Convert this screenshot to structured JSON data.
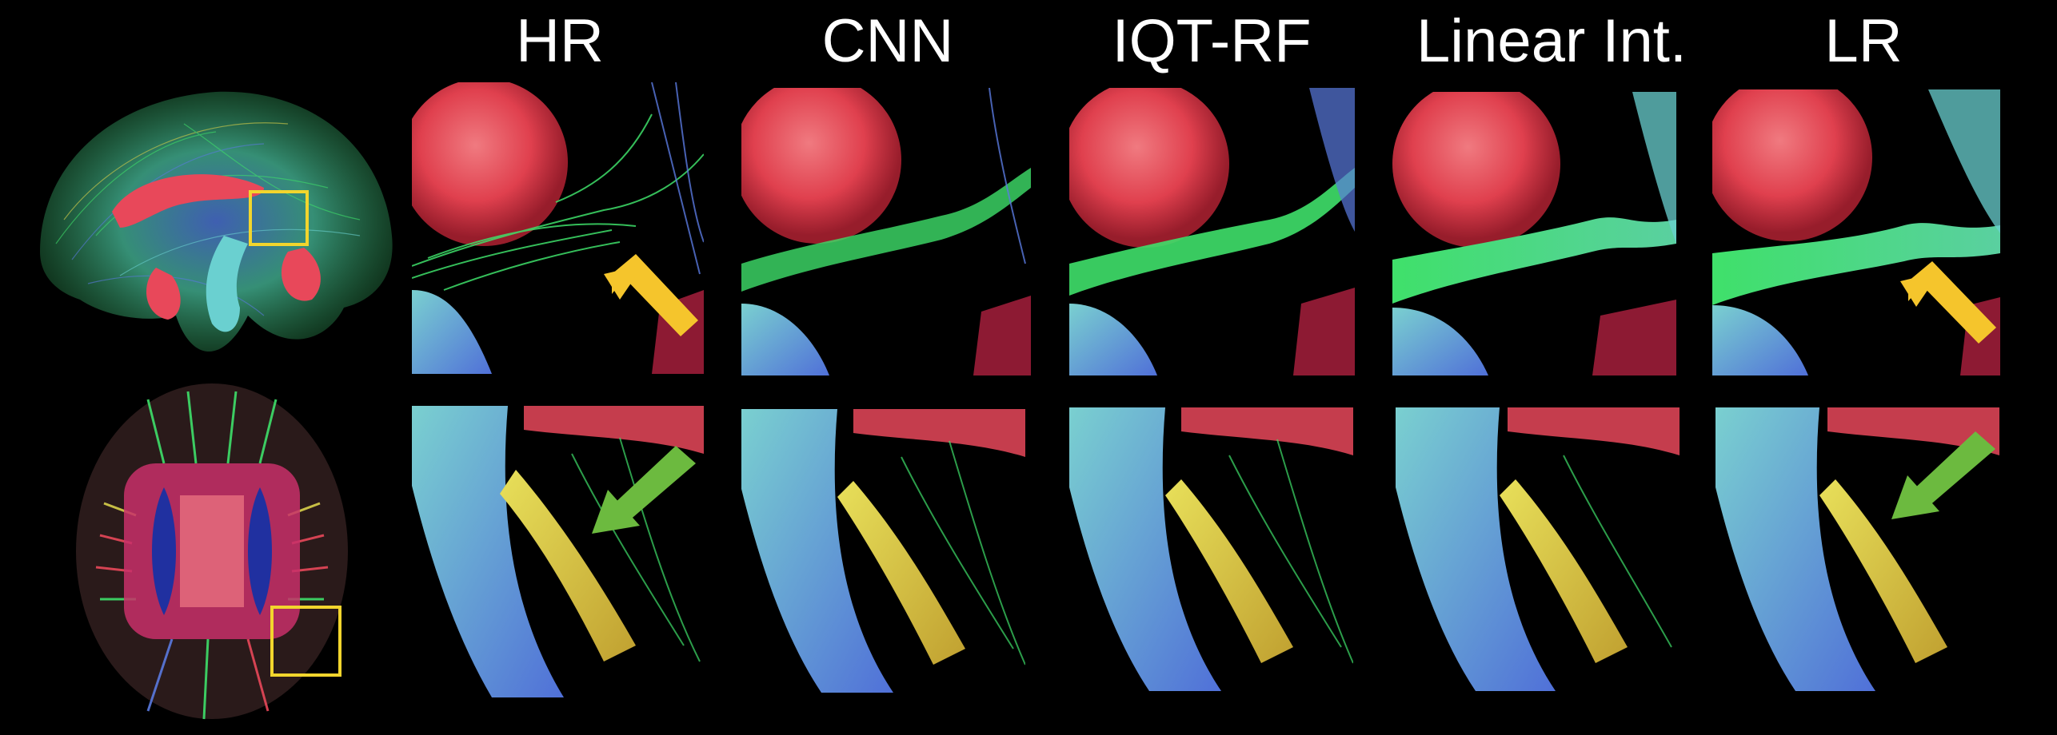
{
  "columns": [
    {
      "label": "HR"
    },
    {
      "label": "CNN"
    },
    {
      "label": "IQT-RF"
    },
    {
      "label": "Linear Int."
    },
    {
      "label": "LR"
    }
  ],
  "rows": [
    {
      "view": "sagittal",
      "roi": "roi-box-top"
    },
    {
      "view": "axial",
      "roi": "roi-box-bottom"
    }
  ],
  "colors": {
    "background": "#000000",
    "roi_box": "#f2d52d",
    "arrow_yellow": "#f5c52c",
    "arrow_green": "#6cba3f",
    "fiber_red": "#e8485a",
    "fiber_green": "#3fe06a",
    "fiber_blue": "#5a7ae0",
    "fiber_yellow": "#d8d04a"
  },
  "arrows": [
    {
      "row": 0,
      "column": "HR",
      "color": "yellow",
      "direction": "up-left"
    },
    {
      "row": 0,
      "column": "LR",
      "color": "yellow",
      "direction": "up-left"
    },
    {
      "row": 1,
      "column": "HR",
      "color": "green",
      "direction": "down-left"
    },
    {
      "row": 1,
      "column": "LR",
      "color": "green",
      "direction": "down-left"
    }
  ]
}
